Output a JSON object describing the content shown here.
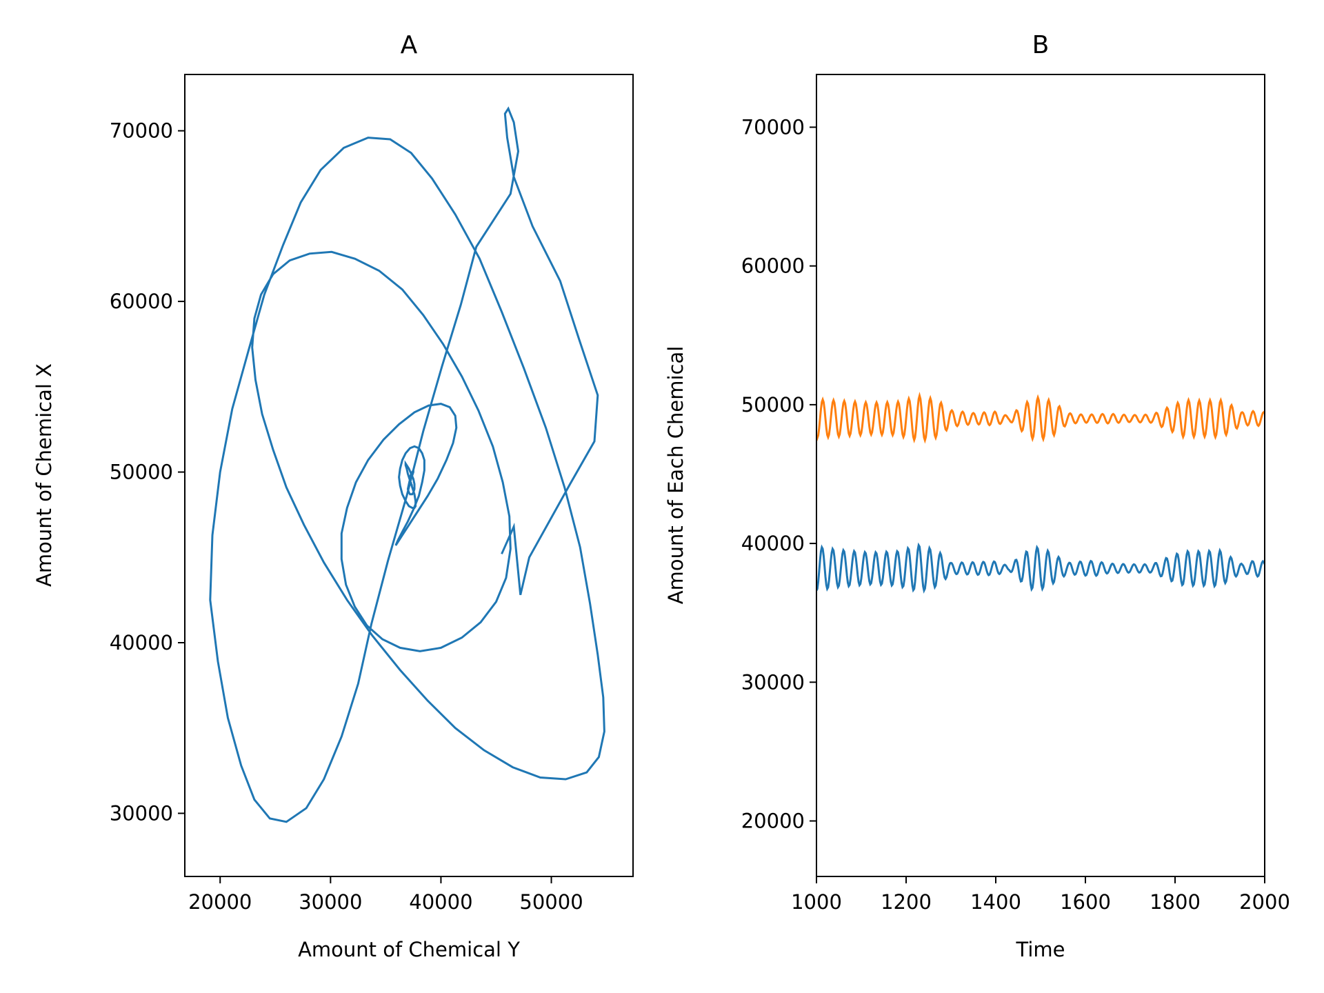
{
  "chart_data": [
    {
      "type": "line",
      "title": "A",
      "xlabel": "Amount of Chemical Y",
      "ylabel": "Amount of Chemical X",
      "xlim": [
        16800,
        57400
      ],
      "ylim": [
        26300,
        73300
      ],
      "xticks": [
        20000,
        30000,
        40000,
        50000
      ],
      "yticks": [
        30000,
        40000,
        50000,
        60000,
        70000
      ],
      "xtick_labels": [
        "20000",
        "30000",
        "40000",
        "50000"
      ],
      "ytick_labels": [
        "30000",
        "40000",
        "50000",
        "60000",
        "70000"
      ],
      "grid": false,
      "color": "#1f77b4",
      "series": [
        {
          "x": [
            45500,
            46600,
            47200,
            48000,
            51700,
            53900,
            54200,
            52500,
            50800,
            48300,
            46600,
            46000,
            45800,
            46100,
            46600,
            47000,
            46300,
            43200,
            41800,
            40100,
            38400,
            36900,
            35200,
            33700,
            32500,
            31000,
            29400,
            27800,
            26000,
            24500,
            23100,
            21900,
            20700,
            19800,
            19100,
            19300,
            20000,
            21100,
            22600,
            24000,
            25700,
            27300,
            29100,
            31200,
            33400,
            35400,
            37300,
            39200,
            41300,
            43500,
            45500,
            47500,
            49500,
            51200,
            52600,
            53500,
            54200,
            54700,
            54800,
            54300,
            53200,
            51300,
            49000,
            46500,
            43900,
            41300,
            38800,
            36300,
            33800,
            31500,
            29400,
            27600,
            26000,
            24800,
            23800,
            23200,
            22900,
            23100,
            23700,
            24800,
            26300,
            28100,
            30100,
            32200,
            34400,
            36500,
            38400,
            40200,
            41900,
            43400,
            44700,
            45600,
            46200,
            46300,
            45900,
            45000,
            43600,
            41900,
            40000,
            38100,
            36300,
            34700,
            33300,
            32200,
            31400,
            31000,
            31000,
            31500,
            32300,
            33400,
            34800,
            36200,
            37600,
            38900,
            40000,
            40800,
            41300,
            41400,
            41100,
            40500,
            39700,
            38800,
            37900,
            37100,
            36500,
            36100,
            35900,
            35900,
            36100,
            36500,
            37000,
            37500,
            38000,
            38300,
            38500,
            38500,
            38300,
            38000,
            37600,
            37200,
            36800,
            36500,
            36300,
            36200,
            36300,
            36500,
            36800,
            37100,
            37400,
            37600,
            37700,
            37700,
            37600,
            37400,
            37200,
            37000,
            36900,
            36800,
            36800,
            36900,
            37100,
            37300,
            37500,
            37600,
            37600,
            37500,
            37400,
            37200,
            37100,
            37000,
            37100,
            37200,
            37400,
            37500,
            37500,
            37400,
            37300,
            37200,
            37200,
            37300,
            37400,
            37400,
            37300,
            37300
          ],
          "y": [
            45200,
            46800,
            42800,
            45000,
            49300,
            51800,
            54500,
            57800,
            61200,
            64400,
            67300,
            69600,
            71000,
            71300,
            70500,
            68800,
            66300,
            63200,
            59800,
            56200,
            52400,
            48600,
            44800,
            41100,
            37600,
            34500,
            32000,
            30300,
            29500,
            29700,
            30800,
            32800,
            35600,
            38900,
            42500,
            46300,
            50000,
            53700,
            57200,
            60400,
            63300,
            65800,
            67700,
            69000,
            69600,
            69500,
            68700,
            67200,
            65100,
            62500,
            59400,
            56100,
            52600,
            49100,
            45600,
            42300,
            39300,
            36800,
            34800,
            33300,
            32400,
            32000,
            32100,
            32700,
            33700,
            35000,
            36600,
            38400,
            40400,
            42500,
            44700,
            46900,
            49100,
            51300,
            53400,
            55400,
            57300,
            59000,
            60400,
            61600,
            62400,
            62800,
            62900,
            62500,
            61800,
            60700,
            59200,
            57500,
            55600,
            53600,
            51500,
            49400,
            47400,
            45500,
            43800,
            42400,
            41200,
            40300,
            39700,
            39500,
            39700,
            40200,
            41000,
            42100,
            43400,
            44900,
            46400,
            47900,
            49400,
            50700,
            51900,
            52800,
            53500,
            53900,
            54000,
            53800,
            53300,
            52600,
            51700,
            50700,
            49600,
            48600,
            47700,
            46900,
            46300,
            45900,
            45700,
            45700,
            46000,
            46500,
            47100,
            47800,
            48600,
            49400,
            50100,
            50700,
            51100,
            51400,
            51500,
            51400,
            51100,
            50700,
            50200,
            49700,
            49200,
            48700,
            48300,
            48000,
            47900,
            47900,
            48000,
            48300,
            48700,
            49100,
            49500,
            49900,
            50200,
            50400,
            50500,
            50400,
            50200,
            49900,
            49600,
            49300,
            49000,
            48800,
            48700,
            48700,
            48800,
            49000,
            49300,
            49600,
            49800,
            50000,
            50100,
            50000,
            49900,
            49700,
            49500,
            49300,
            49200,
            49200,
            49300,
            49400
          ]
        }
      ]
    },
    {
      "type": "line",
      "title": "B",
      "xlabel": "Time",
      "ylabel": "Amount of Each Chemical",
      "xlim": [
        1000,
        2000
      ],
      "ylim": [
        16000,
        73800
      ],
      "xticks": [
        1000,
        1200,
        1400,
        1600,
        1800,
        2000
      ],
      "yticks": [
        20000,
        30000,
        40000,
        50000,
        60000,
        70000
      ],
      "xtick_labels": [
        "1000",
        "1200",
        "1400",
        "1600",
        "1800",
        "2000"
      ],
      "ytick_labels": [
        "20000",
        "30000",
        "40000",
        "50000",
        "60000",
        "70000"
      ],
      "grid": false,
      "sample_step": 2,
      "oscillation_period": 24,
      "series": [
        {
          "color": "#ff7f0e",
          "mean": 49000,
          "envelope_time": [
            1000,
            1050,
            1120,
            1180,
            1230,
            1270,
            1300,
            1350,
            1400,
            1430,
            1450,
            1480,
            1500,
            1530,
            1560,
            1590,
            1620,
            1650,
            1700,
            1750,
            1790,
            1820,
            1860,
            1900,
            1920,
            1950,
            1980,
            2000
          ],
          "envelope_amplitude": [
            1400,
            1300,
            1150,
            1200,
            1650,
            1350,
            600,
            400,
            500,
            150,
            700,
            1450,
            1550,
            1200,
            400,
            300,
            300,
            350,
            250,
            300,
            900,
            1350,
            1300,
            1350,
            1100,
            450,
            550,
            450
          ]
        },
        {
          "color": "#1f77b4",
          "mean": 38200,
          "envelope_time": [
            1000,
            1050,
            1120,
            1180,
            1230,
            1270,
            1300,
            1350,
            1400,
            1430,
            1450,
            1480,
            1500,
            1530,
            1560,
            1590,
            1620,
            1650,
            1700,
            1750,
            1790,
            1820,
            1860,
            1900,
            1920,
            1950,
            1980,
            2000
          ],
          "envelope_amplitude": [
            1600,
            1350,
            1150,
            1250,
            1700,
            1300,
            400,
            450,
            500,
            150,
            800,
            1500,
            1550,
            1050,
            400,
            500,
            550,
            350,
            300,
            300,
            900,
            1250,
            1250,
            1300,
            900,
            300,
            600,
            500
          ]
        }
      ]
    }
  ]
}
